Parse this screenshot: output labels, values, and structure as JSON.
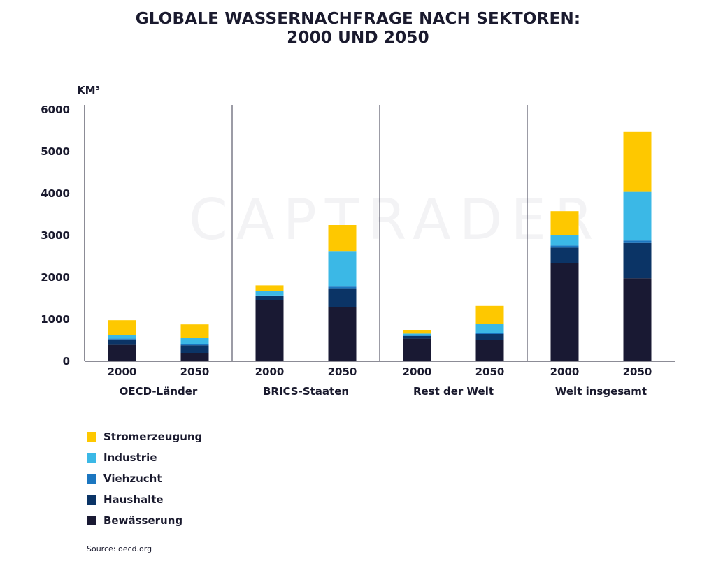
{
  "chart_data": {
    "type": "bar",
    "stacked": true,
    "title": [
      "GLOBALE WASSERNACHFRAGE NACH SEKTOREN:",
      "2000 UND 2050"
    ],
    "unit_label": "KM³",
    "ylim": [
      0,
      6000
    ],
    "yticks": [
      0,
      1000,
      2000,
      3000,
      4000,
      5000,
      6000
    ],
    "groups": [
      {
        "name": "OECD-Länder",
        "categories": [
          "2000",
          "2050"
        ]
      },
      {
        "name": "BRICS-Staaten",
        "categories": [
          "2000",
          "2050"
        ]
      },
      {
        "name": "Rest der Welt",
        "categories": [
          "2000",
          "2050"
        ]
      },
      {
        "name": "Welt insgesamt",
        "categories": [
          "2000",
          "2050"
        ]
      }
    ],
    "series": [
      {
        "name": "Bewässerung",
        "color": "#191933",
        "values": [
          [
            390,
            200
          ],
          [
            1450,
            1300
          ],
          [
            540,
            500
          ],
          [
            2350,
            1980
          ]
        ]
      },
      {
        "name": "Haushalte",
        "color": "#0b3466",
        "values": [
          [
            130,
            180
          ],
          [
            100,
            440
          ],
          [
            60,
            150
          ],
          [
            360,
            840
          ]
        ]
      },
      {
        "name": "Viehzucht",
        "color": "#1b76c0",
        "values": [
          [
            20,
            20
          ],
          [
            20,
            40
          ],
          [
            10,
            30
          ],
          [
            50,
            60
          ]
        ]
      },
      {
        "name": "Industrie",
        "color": "#3bb8e6",
        "values": [
          [
            90,
            150
          ],
          [
            100,
            850
          ],
          [
            50,
            210
          ],
          [
            240,
            1160
          ]
        ]
      },
      {
        "name": "Stromerzeugung",
        "color": "#fec800",
        "values": [
          [
            350,
            330
          ],
          [
            140,
            620
          ],
          [
            90,
            430
          ],
          [
            580,
            1430
          ]
        ]
      }
    ],
    "legend_order": [
      "Stromerzeugung",
      "Industrie",
      "Viehzucht",
      "Haushalte",
      "Bewässerung"
    ],
    "legend_position": "bottom-left",
    "grid": false
  },
  "watermark": "CAPTRADER",
  "source": "Source: oecd.org"
}
